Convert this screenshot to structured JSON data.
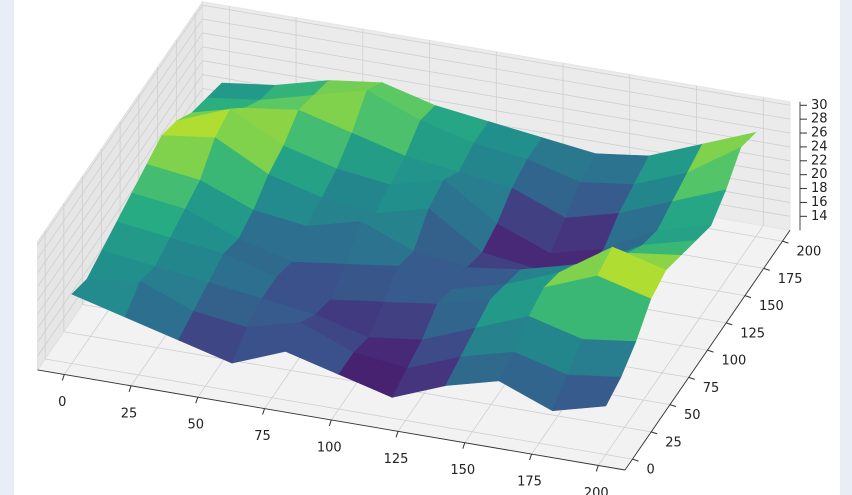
{
  "chart_data": {
    "type": "surface",
    "colormap": "viridis",
    "x": [
      0,
      20,
      40,
      60,
      80,
      100,
      120,
      140,
      160,
      180,
      200
    ],
    "y": [
      0,
      20,
      40,
      60,
      80,
      100,
      120,
      140,
      160,
      180,
      200
    ],
    "z": [
      [
        22,
        20,
        18,
        16,
        19,
        17,
        15,
        18,
        20,
        17,
        19
      ],
      [
        21,
        22,
        19,
        18,
        20,
        17,
        16,
        19,
        21,
        19,
        20
      ],
      [
        22,
        21,
        20,
        19,
        18,
        16,
        17,
        20,
        23,
        21,
        22
      ],
      [
        23,
        22,
        21,
        19,
        17,
        18,
        19,
        21,
        24,
        27,
        25
      ],
      [
        24,
        23,
        20,
        18,
        19,
        20,
        18,
        20,
        23,
        28,
        26
      ],
      [
        25,
        24,
        21,
        20,
        22,
        19,
        18,
        19,
        21,
        24,
        25
      ],
      [
        26,
        27,
        23,
        21,
        20,
        22,
        17,
        16,
        18,
        22,
        24
      ],
      [
        25,
        28,
        24,
        22,
        21,
        23,
        18,
        15,
        17,
        21,
        23
      ],
      [
        23,
        25,
        26,
        24,
        22,
        21,
        20,
        17,
        19,
        22,
        25
      ],
      [
        22,
        23,
        25,
        27,
        24,
        22,
        21,
        19,
        20,
        23,
        28
      ],
      [
        21,
        22,
        24,
        25,
        23,
        22,
        21,
        20,
        21,
        24,
        27
      ]
    ],
    "xlim": [
      -10,
      210
    ],
    "ylim": [
      -10,
      210
    ],
    "zlim": [
      12,
      30.5
    ],
    "xticks": [
      0,
      25,
      50,
      75,
      100,
      125,
      150,
      175,
      200
    ],
    "yticks": [
      0,
      25,
      50,
      75,
      100,
      125,
      150,
      175,
      200
    ],
    "zticks": [
      14,
      16,
      18,
      20,
      22,
      24,
      26,
      28,
      30
    ],
    "grid": true
  }
}
